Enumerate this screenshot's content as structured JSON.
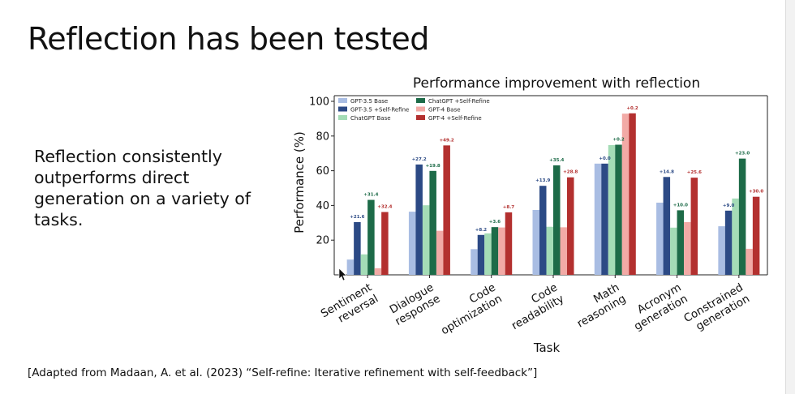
{
  "slide": {
    "title": "Reflection has been tested",
    "body": "Reflection consistently outperforms direct generation on a variety of tasks.",
    "citation": "[Adapted from Madaan, A. et al. (2023) “Self-refine: Iterative refinement with self-feedback”]"
  },
  "chart_data": {
    "type": "bar",
    "title": "Performance improvement with reflection",
    "xlabel": "Task",
    "ylabel": "Performance (%)",
    "ylim": [
      0,
      100
    ],
    "yticks": [
      20,
      40,
      60,
      80,
      100
    ],
    "grid": false,
    "legend_position": "top-left",
    "categories": [
      [
        "Sentiment",
        "reversal"
      ],
      [
        "Dialogue",
        "response"
      ],
      [
        "Code",
        "optimization"
      ],
      [
        "Code",
        "readability"
      ],
      [
        "Math",
        "reasoning"
      ],
      [
        "Acronym",
        "generation"
      ],
      [
        "Constrained",
        "generation"
      ]
    ],
    "series": [
      {
        "name": "GPT-3.5 Base",
        "color": "#a9bde3",
        "values": [
          8.8,
          36.4,
          14.8,
          37.4,
          64.1,
          41.6,
          28.0
        ]
      },
      {
        "name": "GPT-3.5 +Self-Refine",
        "color": "#2c4a85",
        "values": [
          30.4,
          63.6,
          23.0,
          51.3,
          64.1,
          56.4,
          37.0
        ]
      },
      {
        "name": "ChatGPT Base",
        "color": "#a4dcb6",
        "values": [
          11.8,
          40.1,
          23.9,
          27.7,
          74.8,
          27.2,
          44.0
        ]
      },
      {
        "name": "ChatGPT +Self-Refine",
        "color": "#1d6b48",
        "values": [
          43.2,
          59.9,
          27.5,
          63.1,
          75.0,
          37.2,
          67.0
        ]
      },
      {
        "name": "GPT-4 Base",
        "color": "#f2aaa6",
        "values": [
          3.8,
          25.4,
          27.3,
          27.4,
          92.9,
          30.4,
          15.0
        ]
      },
      {
        "name": "GPT-4 +Self-Refine",
        "color": "#b3302f",
        "values": [
          36.2,
          74.6,
          36.0,
          56.2,
          93.1,
          56.0,
          45.0
        ]
      }
    ],
    "annotations": [
      {
        "series": 1,
        "values": [
          "+21.6",
          "+27.2",
          "+8.2",
          "+13.9",
          "+0.0",
          "+14.8",
          "+9.0"
        ]
      },
      {
        "series": 3,
        "values": [
          "+31.4",
          "+19.8",
          "+3.6",
          "+35.4",
          "+0.2",
          "+10.0",
          "+23.0"
        ]
      },
      {
        "series": 5,
        "values": [
          "+32.4",
          "+49.2",
          "+8.7",
          "+28.8",
          "+0.2",
          "+25.6",
          "+30.0"
        ]
      }
    ]
  }
}
